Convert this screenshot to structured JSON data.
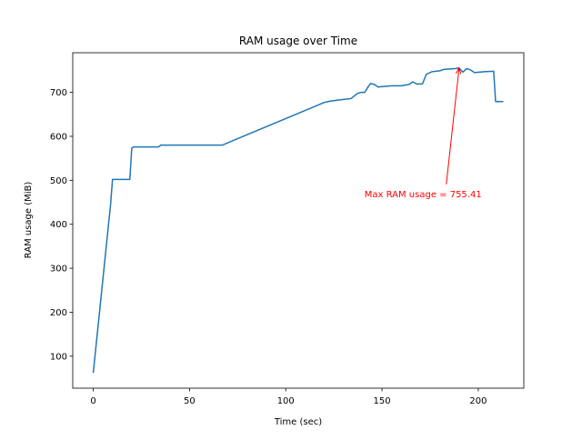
{
  "chart_data": {
    "type": "line",
    "title": "RAM usage over Time",
    "x_label": "Time (sec)",
    "y_label": "RAM usage (MiB)",
    "series": [
      {
        "name": "RAM usage",
        "color": "#1f77b4",
        "x": [
          0,
          9,
          10,
          19,
          20,
          21,
          34,
          35,
          67,
          120,
          123,
          130,
          134,
          137,
          139,
          141,
          143,
          144,
          146,
          148,
          150,
          155,
          160,
          164,
          166,
          168,
          171,
          173,
          176,
          180,
          182,
          188,
          190,
          192,
          194,
          196,
          198,
          203,
          208,
          209,
          213
        ],
        "values": [
          62,
          445,
          502,
          502,
          573,
          576,
          576,
          580,
          580,
          677,
          680,
          684,
          686,
          697,
          700,
          700,
          714,
          720,
          718,
          712,
          713,
          715,
          715,
          718,
          724,
          719,
          719,
          741,
          747,
          749,
          752,
          754,
          755.41,
          746,
          754,
          751,
          745,
          747,
          748,
          679,
          679
        ]
      }
    ],
    "annotation": {
      "text": "Max RAM usage = 755.41",
      "x": 190,
      "y": 755.41,
      "color": "#ff0000"
    },
    "xlim": [
      -10.65,
      223.65
    ],
    "ylim": [
      27.3,
      790.1
    ],
    "xticks": [
      0,
      50,
      100,
      150,
      200
    ],
    "yticks": [
      100,
      200,
      300,
      400,
      500,
      600,
      700
    ]
  }
}
